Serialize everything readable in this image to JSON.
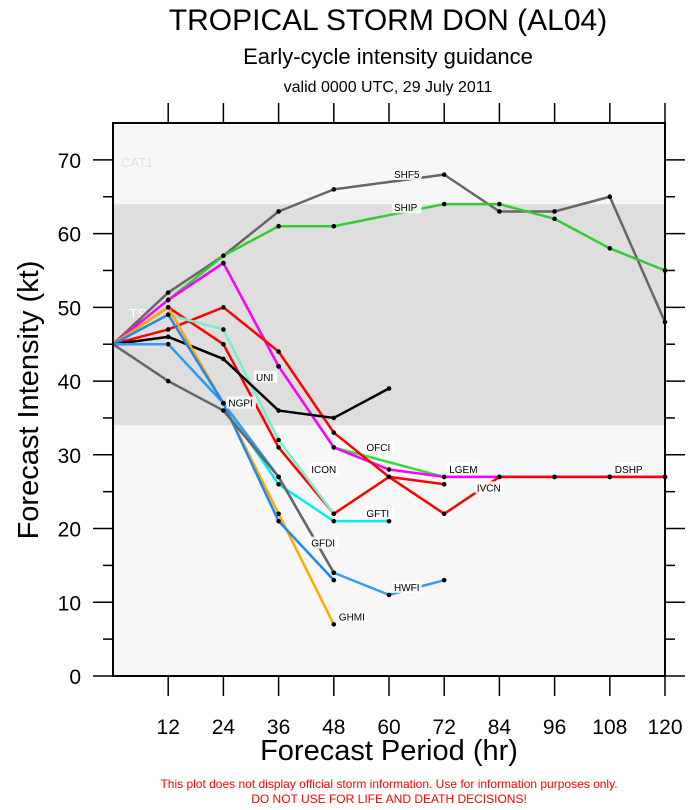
{
  "chart_data": {
    "type": "line",
    "title": "TROPICAL STORM DON (AL04)",
    "subtitle": "Early-cycle intensity guidance",
    "subtitle2": "valid 0000 UTC, 29 July 2011",
    "xlabel": "Forecast Period (hr)",
    "ylabel": "Forecast Intensity (kt)",
    "xlim": [
      0,
      120
    ],
    "ylim": [
      0,
      75
    ],
    "xticks": [
      12,
      24,
      36,
      48,
      60,
      72,
      84,
      96,
      108,
      120
    ],
    "yticks": [
      0,
      10,
      20,
      30,
      40,
      50,
      60,
      70
    ],
    "bands": [
      {
        "name": "TS",
        "from": 34,
        "to": 64,
        "color": "#dedede"
      },
      {
        "name": "CAT1",
        "from": 64,
        "to": 75,
        "color": "#f7f7f7"
      }
    ],
    "band_labels": [
      "TS",
      "CAT1"
    ],
    "series": [
      {
        "name": "SHF5",
        "color": "#666666",
        "x": [
          0,
          12,
          24,
          36,
          48,
          72,
          84,
          96,
          108,
          120
        ],
        "y": [
          45,
          52,
          57,
          63,
          66,
          68,
          63,
          63,
          65,
          48
        ]
      },
      {
        "name": "SHIP",
        "color": "#33cc33",
        "x": [
          0,
          12,
          24,
          36,
          48,
          72,
          84,
          96,
          108,
          120
        ],
        "y": [
          45,
          51,
          57,
          61,
          61,
          64,
          64,
          62,
          58,
          55
        ]
      },
      {
        "name": "LGEM",
        "color": "#33dd33",
        "x": [
          0,
          12,
          24,
          36,
          48,
          72,
          84,
          96,
          108,
          120
        ],
        "y": [
          45,
          51,
          56,
          42,
          31,
          27,
          27,
          27,
          27,
          27
        ]
      },
      {
        "name": "DSHP",
        "color": "#ff00ff",
        "x": [
          0,
          12,
          24,
          36,
          48,
          60,
          72,
          84,
          96,
          108,
          120
        ],
        "y": [
          45,
          51,
          56,
          42,
          31,
          28,
          27,
          27,
          27,
          27,
          27
        ]
      },
      {
        "name": "OFCI",
        "color": "#ff0000",
        "x": [
          0,
          12,
          24,
          36,
          48,
          60,
          72
        ],
        "y": [
          45,
          47,
          50,
          44,
          33,
          27,
          26
        ]
      },
      {
        "name": "IVCN",
        "color": "#ff0000",
        "x": [
          0,
          12,
          24,
          36,
          48,
          60,
          72,
          84,
          96,
          108,
          120
        ],
        "y": [
          45,
          50,
          45,
          31,
          22,
          27,
          22,
          27,
          27,
          27,
          27
        ]
      },
      {
        "name": "ICON",
        "color": "#77eecc",
        "x": [
          0,
          12,
          24,
          36,
          48
        ],
        "y": [
          45,
          49,
          47,
          32,
          22
        ]
      },
      {
        "name": "UNI",
        "color": "#000000",
        "x": [
          0,
          12,
          24,
          36,
          48,
          60
        ],
        "y": [
          45,
          46,
          43,
          36,
          35,
          39
        ]
      },
      {
        "name": "GFTI",
        "color": "#00eeee",
        "x": [
          0,
          12,
          24,
          36,
          48,
          60
        ],
        "y": [
          45,
          45,
          37,
          26,
          21,
          21
        ]
      },
      {
        "name": "HWFI",
        "color": "#3399ff",
        "x": [
          0,
          12,
          24,
          36,
          48,
          60,
          72
        ],
        "y": [
          45,
          45,
          37,
          27,
          14,
          11,
          13
        ]
      },
      {
        "name": "GHMI",
        "color": "#ffaa00",
        "x": [
          0,
          12,
          24,
          36,
          48
        ],
        "y": [
          45,
          50,
          37,
          22,
          7
        ]
      },
      {
        "name": "GFDI",
        "color": "#2288ee",
        "x": [
          0,
          12,
          24,
          36,
          48
        ],
        "y": [
          45,
          49,
          37,
          21,
          13
        ]
      },
      {
        "name": "NGPI",
        "color": "#666666",
        "x": [
          0,
          12,
          24,
          36,
          48
        ],
        "y": [
          45,
          40,
          36,
          27,
          14
        ]
      }
    ],
    "grid": false,
    "disclaimer": [
      "This plot does not display official storm information. Use for information purposes only.",
      "DO NOT USE FOR LIFE AND DEATH DECISIONS!"
    ]
  }
}
